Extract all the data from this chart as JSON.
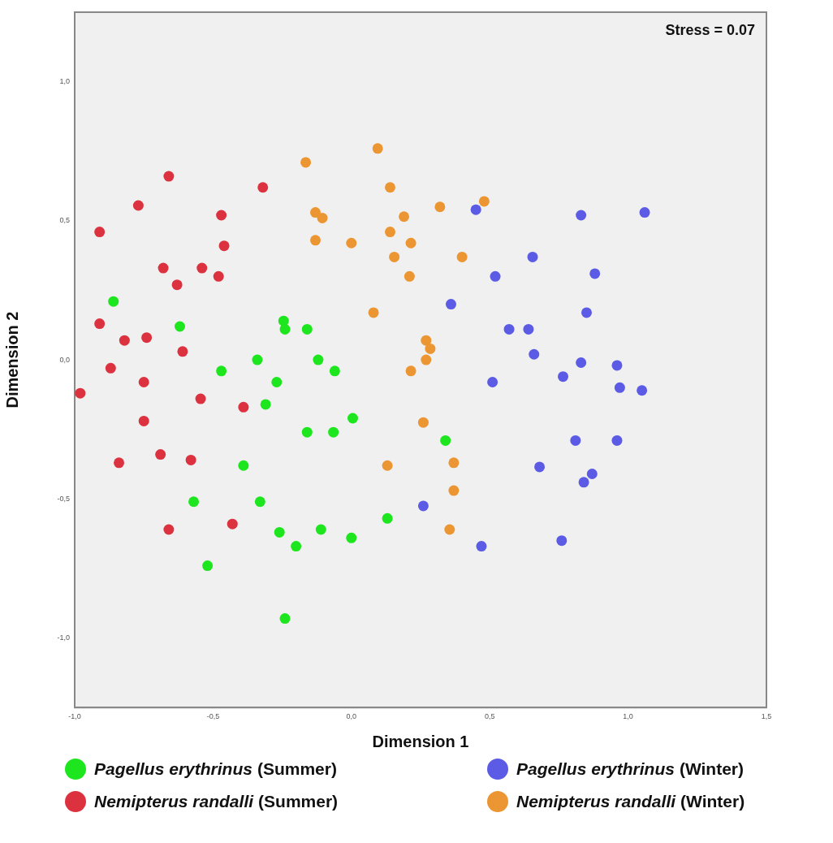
{
  "chart_data": {
    "type": "scatter",
    "xlabel": "Dimension 1",
    "ylabel": "Dimension 2",
    "annotations": [
      "Stress = 0.07"
    ],
    "xlim": [
      -1.0,
      1.5
    ],
    "ylim": [
      -1.25,
      1.25
    ],
    "xticks": [
      {
        "value": -1,
        "label": "-1,0"
      },
      {
        "value": -0.5,
        "label": "-0,5"
      },
      {
        "value": 0,
        "label": "0,0"
      },
      {
        "value": 0.5,
        "label": "0,5"
      },
      {
        "value": 1,
        "label": "1,0"
      },
      {
        "value": 1.5,
        "label": "1,5"
      }
    ],
    "yticks": [
      {
        "value": -1,
        "label": "-1,0"
      },
      {
        "value": -0.5,
        "label": "-0,5"
      },
      {
        "value": 0,
        "label": "0,0"
      },
      {
        "value": 0.5,
        "label": "0,5"
      },
      {
        "value": 1,
        "label": "1,0"
      }
    ],
    "grid": false,
    "legend": "bottom",
    "marker": "circle",
    "series": [
      {
        "name": "Pagellus erythrinus (Summer)",
        "color": "#1ee61e",
        "x": [
          -0.86,
          -0.62,
          -0.245,
          -0.24,
          -0.16,
          -0.34,
          -0.12,
          -0.47,
          -0.06,
          -0.27,
          -0.31,
          0.005,
          -0.16,
          -0.065,
          -0.39,
          -0.57,
          -0.33,
          0.13,
          -0.26,
          -0.11,
          0.0,
          -0.2,
          -0.52,
          -0.24,
          0.34
        ],
        "values": [
          0.21,
          0.12,
          0.14,
          0.11,
          0.11,
          0.0,
          0.0,
          -0.04,
          -0.04,
          -0.08,
          -0.16,
          -0.21,
          -0.26,
          -0.26,
          -0.38,
          -0.51,
          -0.51,
          -0.57,
          -0.62,
          -0.61,
          -0.64,
          -0.67,
          -0.74,
          -0.93,
          -0.29
        ]
      },
      {
        "name": "Pagellus erythrinus (Winter)",
        "color": "#5b5be6",
        "x": [
          0.45,
          0.83,
          1.06,
          0.655,
          0.88,
          0.52,
          0.36,
          0.85,
          0.57,
          0.64,
          0.66,
          0.83,
          0.96,
          0.51,
          0.765,
          0.97,
          1.05,
          0.81,
          0.96,
          0.68,
          0.87,
          0.84,
          0.26,
          0.47,
          0.76
        ],
        "values": [
          0.54,
          0.52,
          0.53,
          0.37,
          0.31,
          0.3,
          0.2,
          0.17,
          0.11,
          0.11,
          0.02,
          -0.01,
          -0.02,
          -0.08,
          -0.06,
          -0.1,
          -0.11,
          -0.29,
          -0.29,
          -0.385,
          -0.41,
          -0.44,
          -0.525,
          -0.67,
          -0.65
        ]
      },
      {
        "name": "Nemipterus randalli (Summer)",
        "color": "#dc3240",
        "x": [
          -0.66,
          -0.77,
          -0.32,
          -0.47,
          -0.91,
          -0.46,
          -0.68,
          -0.54,
          -0.48,
          -0.63,
          -0.91,
          -0.82,
          -0.74,
          -0.61,
          -0.87,
          -0.98,
          -0.75,
          -0.545,
          -0.39,
          -0.75,
          -0.69,
          -0.84,
          -0.58,
          -0.43,
          -0.66
        ],
        "values": [
          0.66,
          0.555,
          0.62,
          0.52,
          0.46,
          0.41,
          0.33,
          0.33,
          0.3,
          0.27,
          0.13,
          0.07,
          0.08,
          0.03,
          -0.03,
          -0.12,
          -0.08,
          -0.14,
          -0.17,
          -0.22,
          -0.34,
          -0.37,
          -0.36,
          -0.59,
          -0.61
        ]
      },
      {
        "name": "Nemipterus randalli (Winter)",
        "color": "#eb9632",
        "x": [
          -0.165,
          0.095,
          0.14,
          -0.13,
          -0.105,
          -0.13,
          0.0,
          0.19,
          0.14,
          0.215,
          0.155,
          0.21,
          0.08,
          0.32,
          0.48,
          0.4,
          0.27,
          0.285,
          0.27,
          0.215,
          0.26,
          0.13,
          0.37,
          0.37,
          0.355
        ],
        "values": [
          0.71,
          0.76,
          0.62,
          0.53,
          0.51,
          0.43,
          0.42,
          0.515,
          0.46,
          0.42,
          0.37,
          0.3,
          0.17,
          0.55,
          0.57,
          0.37,
          0.07,
          0.04,
          0.0,
          -0.04,
          -0.225,
          -0.38,
          -0.37,
          -0.47,
          -0.61
        ]
      }
    ]
  }
}
